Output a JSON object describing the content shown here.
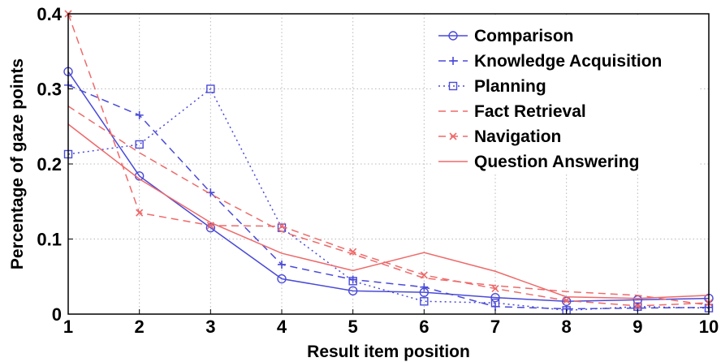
{
  "chart_data": {
    "type": "line",
    "xlabel": "Result item position",
    "ylabel": "Percentage of gaze points",
    "x": [
      1,
      2,
      3,
      4,
      5,
      6,
      7,
      8,
      9,
      10
    ],
    "xticks": [
      "1",
      "2",
      "3",
      "4",
      "5",
      "6",
      "7",
      "8",
      "9",
      "10"
    ],
    "yticks": [
      "0",
      "0.1",
      "0.2",
      "0.3",
      "0.4"
    ],
    "xlim": [
      1,
      10
    ],
    "ylim": [
      0,
      0.4
    ],
    "grid": true,
    "legend_position": "top-right",
    "series": [
      {
        "name": "Comparison",
        "color": "#4a4ad8",
        "dash": "solid",
        "marker": "circle",
        "values": [
          0.323,
          0.184,
          0.115,
          0.047,
          0.031,
          0.029,
          0.022,
          0.017,
          0.019,
          0.021
        ]
      },
      {
        "name": "Knowledge Acquisition",
        "color": "#4a4ad8",
        "dash": "dashed",
        "marker": "plus",
        "values": [
          0.305,
          0.265,
          0.162,
          0.066,
          0.046,
          0.036,
          0.01,
          0.007,
          0.008,
          0.009
        ]
      },
      {
        "name": "Planning",
        "color": "#4a4ad8",
        "dash": "dotted",
        "marker": "square",
        "values": [
          0.213,
          0.226,
          0.3,
          0.115,
          0.044,
          0.017,
          0.015,
          0.005,
          0.01,
          0.008
        ]
      },
      {
        "name": "Fact Retrieval",
        "color": "#ee6a6a",
        "dash": "dashed",
        "marker": "none",
        "values": [
          0.277,
          0.215,
          0.16,
          0.11,
          0.08,
          0.048,
          0.038,
          0.03,
          0.025,
          0.012
        ]
      },
      {
        "name": "Navigation",
        "color": "#ee6a6a",
        "dash": "dashed",
        "marker": "x",
        "values": [
          0.4,
          0.135,
          0.118,
          0.117,
          0.083,
          0.052,
          0.034,
          0.018,
          0.011,
          0.015
        ]
      },
      {
        "name": "Question Answering",
        "color": "#ee6a6a",
        "dash": "solid",
        "marker": "none",
        "values": [
          0.253,
          0.18,
          0.122,
          0.081,
          0.058,
          0.082,
          0.057,
          0.023,
          0.021,
          0.025
        ]
      }
    ]
  }
}
